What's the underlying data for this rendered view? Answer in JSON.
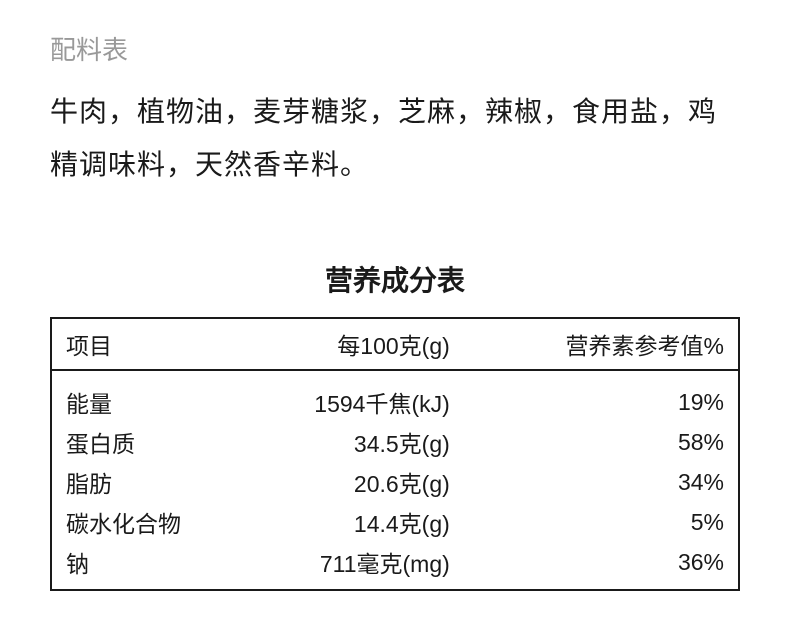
{
  "ingredients": {
    "label": "配料表",
    "text": "牛肉，植物油，麦芽糖浆，芝麻，辣椒，食用盐，鸡精调味料，天然香辛料。"
  },
  "nutrition": {
    "title": "营养成分表",
    "columns": [
      "项目",
      "每100克(g)",
      "营养素参考值%"
    ],
    "rows": [
      {
        "name": "能量",
        "amount": "1594千焦(kJ)",
        "nrv": "19%"
      },
      {
        "name": "蛋白质",
        "amount": "34.5克(g)",
        "nrv": "58%"
      },
      {
        "name": "脂肪",
        "amount": "20.6克(g)",
        "nrv": "34%"
      },
      {
        "name": "碳水化合物",
        "amount": "14.4克(g)",
        "nrv": "5%"
      },
      {
        "name": "钠",
        "amount": "711毫克(mg)",
        "nrv": "36%"
      }
    ],
    "styling": {
      "border_color": "#1a1a1a",
      "text_color": "#1a1a1a",
      "label_color": "#999999",
      "background_color": "#ffffff",
      "header_fontsize": 23,
      "cell_fontsize": 23,
      "title_fontsize": 28,
      "title_fontweight": 700
    }
  }
}
